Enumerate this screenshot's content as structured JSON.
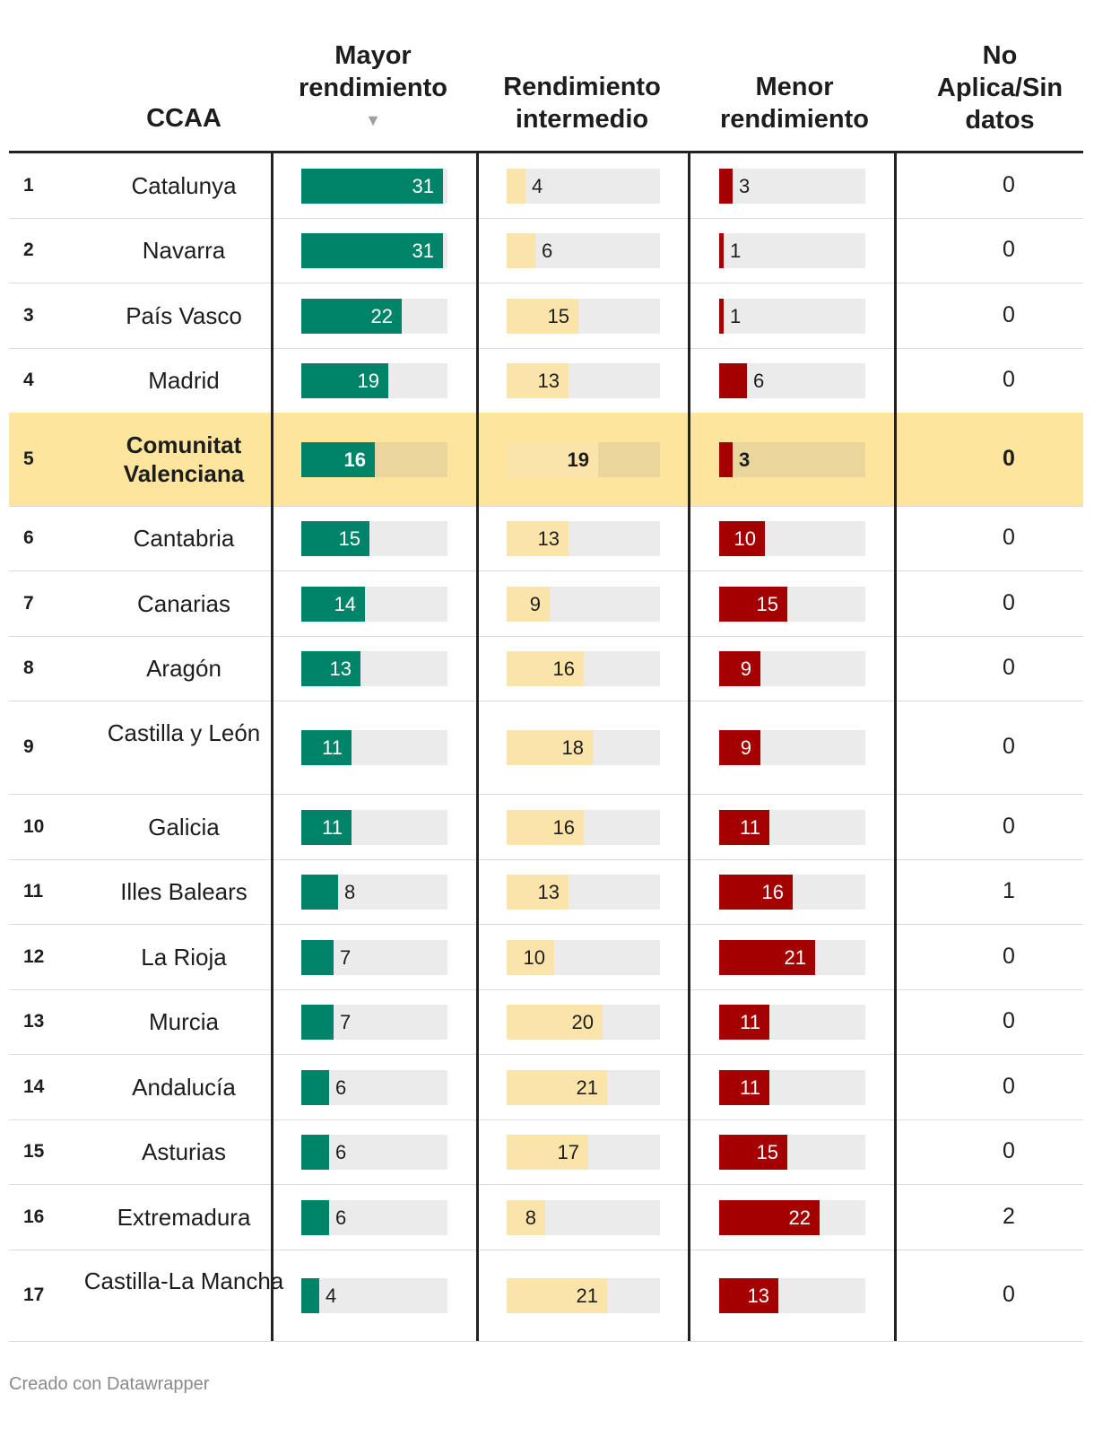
{
  "headers": {
    "ccaa": "CCAA",
    "mayor_line1": "Mayor",
    "mayor_line2": "rendimiento",
    "sort_arrow": "▼",
    "intermedio_line1": "Rendimiento",
    "intermedio_line2": "intermedio",
    "menor_line1": "Menor",
    "menor_line2": "rendimiento",
    "nodata_line1": "No",
    "nodata_line2": "Aplica/Sin",
    "nodata_line3": "datos"
  },
  "colors": {
    "mayor": "#008469",
    "intermedio": "#fbe4a9",
    "menor": "#a50000",
    "highlight": "#fde59d"
  },
  "footer": "Creado con Datawrapper",
  "chart_data": {
    "type": "table",
    "columns": [
      "CCAA",
      "Mayor rendimiento",
      "Rendimiento intermedio",
      "Menor rendimiento",
      "No Aplica/Sin datos"
    ],
    "scale_max": 32,
    "highlighted_rank": 5,
    "rows": [
      {
        "rank": "1",
        "name": "Catalunya",
        "mayor": 31,
        "intermedio": 4,
        "menor": 3,
        "nodata": 0
      },
      {
        "rank": "2",
        "name": "Navarra",
        "mayor": 31,
        "intermedio": 6,
        "menor": 1,
        "nodata": 0
      },
      {
        "rank": "3",
        "name": "País Vasco",
        "mayor": 22,
        "intermedio": 15,
        "menor": 1,
        "nodata": 0
      },
      {
        "rank": "4",
        "name": "Madrid",
        "mayor": 19,
        "intermedio": 13,
        "menor": 6,
        "nodata": 0
      },
      {
        "rank": "5",
        "name": "Comunitat Valenciana",
        "mayor": 16,
        "intermedio": 19,
        "menor": 3,
        "nodata": 0
      },
      {
        "rank": "6",
        "name": "Cantabria",
        "mayor": 15,
        "intermedio": 13,
        "menor": 10,
        "nodata": 0
      },
      {
        "rank": "7",
        "name": "Canarias",
        "mayor": 14,
        "intermedio": 9,
        "menor": 15,
        "nodata": 0
      },
      {
        "rank": "8",
        "name": "Aragón",
        "mayor": 13,
        "intermedio": 16,
        "menor": 9,
        "nodata": 0
      },
      {
        "rank": "9",
        "name": "Castilla y León",
        "mayor": 11,
        "intermedio": 18,
        "menor": 9,
        "nodata": 0
      },
      {
        "rank": "10",
        "name": "Galicia",
        "mayor": 11,
        "intermedio": 16,
        "menor": 11,
        "nodata": 0
      },
      {
        "rank": "11",
        "name": "Illes Balears",
        "mayor": 8,
        "intermedio": 13,
        "menor": 16,
        "nodata": 1
      },
      {
        "rank": "12",
        "name": "La Rioja",
        "mayor": 7,
        "intermedio": 10,
        "menor": 21,
        "nodata": 0
      },
      {
        "rank": "13",
        "name": "Murcia",
        "mayor": 7,
        "intermedio": 20,
        "menor": 11,
        "nodata": 0
      },
      {
        "rank": "14",
        "name": "Andalucía",
        "mayor": 6,
        "intermedio": 21,
        "menor": 11,
        "nodata": 0
      },
      {
        "rank": "15",
        "name": "Asturias",
        "mayor": 6,
        "intermedio": 17,
        "menor": 15,
        "nodata": 0
      },
      {
        "rank": "16",
        "name": "Extremadura",
        "mayor": 6,
        "intermedio": 8,
        "menor": 22,
        "nodata": 2
      },
      {
        "rank": "17",
        "name": "Castilla-La Mancha",
        "mayor": 4,
        "intermedio": 21,
        "menor": 13,
        "nodata": 0
      }
    ]
  }
}
